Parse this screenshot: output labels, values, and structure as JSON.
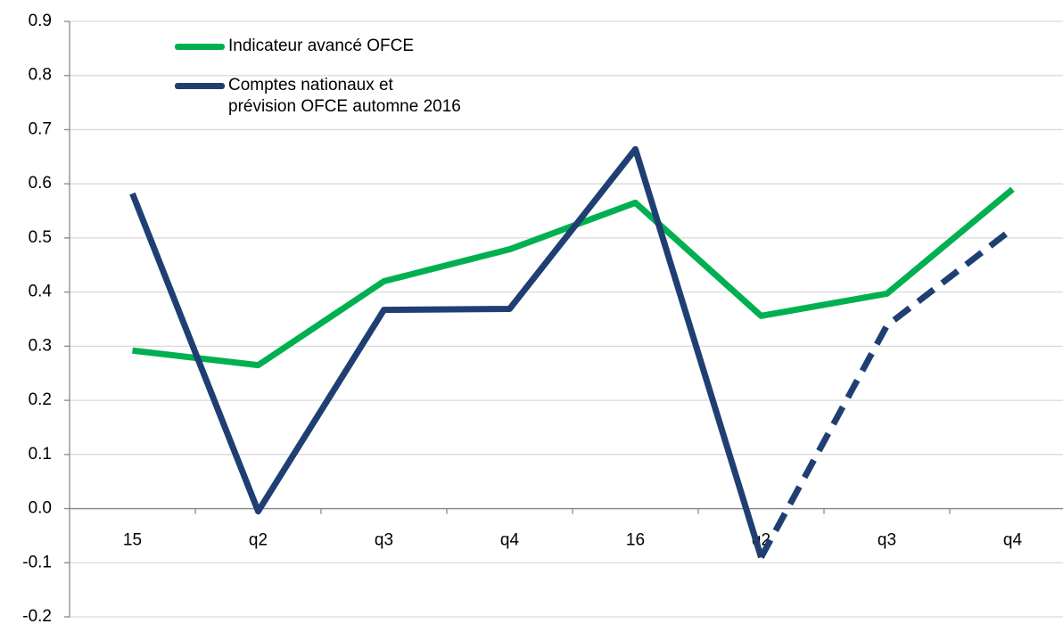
{
  "chart_data": {
    "type": "line",
    "categories": [
      "15",
      "q2",
      "q3",
      "q4",
      "16",
      "q2",
      "q3",
      "q4"
    ],
    "series": [
      {
        "name": "Indicateur avancé OFCE",
        "color": "#00b050",
        "values": [
          0.292,
          0.265,
          0.42,
          0.479,
          0.565,
          0.356,
          0.397,
          0.59
        ]
      },
      {
        "name": "Comptes nationaux et\nprévision OFCE automne 2016",
        "color": "#1f3f73",
        "values": [
          0.582,
          -0.005,
          0.367,
          0.369,
          0.664,
          -0.09,
          0.338,
          0.517
        ],
        "dashed_from": 5
      }
    ],
    "ylim": [
      -0.2,
      0.9
    ],
    "yticks": [
      -0.2,
      -0.1,
      {
        "value": 0,
        "label": "0.0"
      },
      0.1,
      0.2,
      0.3,
      0.4,
      0.5,
      0.6,
      0.7,
      0.8,
      0.9
    ],
    "grid": true,
    "legend": "top-left"
  }
}
